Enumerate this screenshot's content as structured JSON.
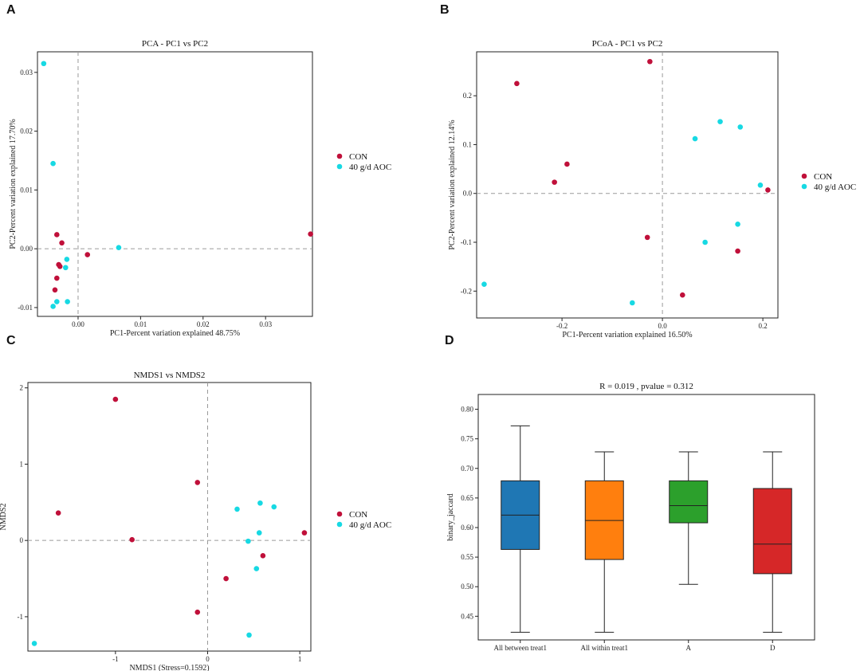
{
  "panels": {
    "A": "A",
    "B": "B",
    "C": "C",
    "D": "D"
  },
  "colors": {
    "con": "#c0103a",
    "aoc": "#17d9e3"
  },
  "chart_data": [
    {
      "id": "A",
      "type": "scatter",
      "title": "PCA - PC1 vs PC2",
      "xlabel": "PC1-Percent variation explained 48.75%",
      "ylabel": "PC2-Percent variation explained 17.70%",
      "xlim": [
        -0.0065,
        0.0375
      ],
      "ylim": [
        -0.0115,
        0.0335
      ],
      "xticks": [
        0,
        0.01,
        0.02,
        0.03
      ],
      "xticklabels": [
        "0.00",
        "0.01",
        "0.02",
        "0.03"
      ],
      "yticks": [
        -0.01,
        0,
        0.01,
        0.02,
        0.03
      ],
      "yticklabels": [
        "-0.01",
        "0.00",
        "0.01",
        "0.02",
        "0.03"
      ],
      "legend": [
        "CON",
        "40 g/d AOC"
      ],
      "series": [
        {
          "name": "CON",
          "x": [
            -0.0034,
            -0.0026,
            -0.0031,
            -0.0029,
            -0.0034,
            -0.0037,
            0.0015,
            0.0372
          ],
          "y": [
            0.0024,
            0.001,
            -0.0027,
            -0.003,
            -0.005,
            -0.007,
            -0.001,
            0.0025
          ]
        },
        {
          "name": "40 g/d AOC",
          "x": [
            -0.0055,
            -0.004,
            -0.0018,
            -0.002,
            -0.0017,
            -0.0034,
            -0.004,
            0.0065
          ],
          "y": [
            0.0315,
            0.0145,
            -0.0018,
            -0.0032,
            -0.009,
            -0.009,
            -0.0098,
            0.0002
          ]
        }
      ]
    },
    {
      "id": "B",
      "type": "scatter",
      "title": "PCoA - PC1 vs PC2",
      "xlabel": "PC1-Percent variation explained 16.50%",
      "ylabel": "PC2-Percent variation explained 12.14%",
      "xlim": [
        -0.37,
        0.23
      ],
      "ylim": [
        -0.255,
        0.29
      ],
      "xticks": [
        -0.2,
        0,
        0.2
      ],
      "xticklabels": [
        "-0.2",
        "0.0",
        "0.2"
      ],
      "yticks": [
        -0.2,
        -0.1,
        0,
        0.1,
        0.2
      ],
      "yticklabels": [
        "-0.2",
        "-0.1",
        "0.0",
        "0.1",
        "0.2"
      ],
      "legend": [
        "CON",
        "40 g/d AOC"
      ],
      "series": [
        {
          "name": "CON",
          "x": [
            -0.29,
            -0.19,
            -0.215,
            -0.025,
            -0.03,
            0.04,
            0.15,
            0.21
          ],
          "y": [
            0.225,
            0.06,
            0.023,
            0.27,
            -0.09,
            -0.208,
            -0.118,
            0.007
          ]
        },
        {
          "name": "40 g/d AOC",
          "x": [
            0.115,
            0.155,
            0.065,
            0.195,
            0.085,
            0.15,
            -0.355,
            -0.06
          ],
          "y": [
            0.147,
            0.136,
            0.112,
            0.017,
            -0.1,
            -0.063,
            -0.186,
            -0.224
          ]
        }
      ]
    },
    {
      "id": "C",
      "type": "scatter",
      "title": "NMDS1 vs NMDS2",
      "xlabel": "NMDS1 (Stress=0.1592)",
      "ylabel": "NMDS2",
      "xlim": [
        -1.95,
        1.12
      ],
      "ylim": [
        -1.45,
        2.07
      ],
      "xticks": [
        -1,
        0,
        1
      ],
      "xticklabels": [
        "-1",
        "0",
        "1"
      ],
      "yticks": [
        -1,
        0,
        1,
        2
      ],
      "yticklabels": [
        "-1",
        "0",
        "1",
        "2"
      ],
      "legend": [
        "CON",
        "40 g/d AOC"
      ],
      "series": [
        {
          "name": "CON",
          "x": [
            -1.0,
            -1.62,
            -0.82,
            -0.11,
            -0.11,
            0.2,
            0.6,
            1.05
          ],
          "y": [
            1.85,
            0.36,
            0.01,
            0.76,
            -0.94,
            -0.5,
            -0.2,
            0.1
          ]
        },
        {
          "name": "40 g/d AOC",
          "x": [
            0.32,
            0.57,
            0.72,
            0.56,
            0.44,
            0.53,
            0.45,
            -1.88
          ],
          "y": [
            0.41,
            0.49,
            0.44,
            0.1,
            -0.01,
            -0.37,
            -1.24,
            -1.35
          ]
        }
      ]
    },
    {
      "id": "D",
      "type": "box",
      "title": "R = 0.019 , pvalue = 0.312",
      "xlabel": "",
      "ylabel": "binary_jaccard",
      "ylim": [
        0.41,
        0.825
      ],
      "yticks": [
        0.45,
        0.5,
        0.55,
        0.6,
        0.65,
        0.7,
        0.75,
        0.8
      ],
      "yticklabels": [
        "0.45",
        "0.50",
        "0.55",
        "0.60",
        "0.65",
        "0.70",
        "0.75",
        "0.80"
      ],
      "categories": [
        "All between treat1",
        "All within treat1",
        "A",
        "D"
      ],
      "boxes": [
        {
          "name": "All between treat1",
          "min": 0.423,
          "q1": 0.563,
          "median": 0.621,
          "q3": 0.679,
          "max": 0.772,
          "color": "#1f77b4"
        },
        {
          "name": "All within treat1",
          "min": 0.423,
          "q1": 0.546,
          "median": 0.612,
          "q3": 0.679,
          "max": 0.728,
          "color": "#ff7f0e"
        },
        {
          "name": "A",
          "min": 0.504,
          "q1": 0.608,
          "median": 0.637,
          "q3": 0.679,
          "max": 0.728,
          "color": "#2ca02c"
        },
        {
          "name": "D",
          "min": 0.423,
          "q1": 0.522,
          "median": 0.572,
          "q3": 0.666,
          "max": 0.728,
          "color": "#d62728"
        }
      ]
    }
  ]
}
